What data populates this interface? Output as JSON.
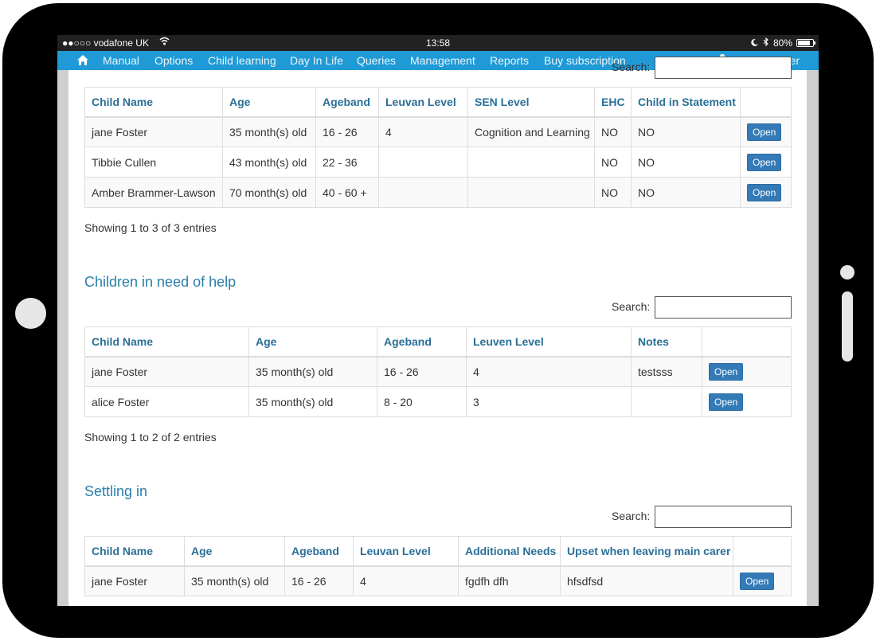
{
  "status_bar": {
    "carrier": "●●○○○ vodafone UK",
    "time": "13:58",
    "battery": "80%",
    "icons": [
      "wifi-icon",
      "moon-icon",
      "bluetooth-icon",
      "battery-icon"
    ]
  },
  "nav": {
    "home_icon": "home-icon",
    "items": [
      "Manual",
      "Options",
      "Child learning",
      "Day In Life",
      "Queries",
      "Management",
      "Reports",
      "Buy subscription"
    ],
    "user_greeting": "Hi, Ian Foster",
    "user_icon": "user-icon"
  },
  "colors": {
    "nav_bg": "#1f9ad6",
    "header_text": "#2a6f97",
    "button_bg": "#337ab7",
    "section_title": "#2a7fa8"
  },
  "table1": {
    "search_label": "Search:",
    "headers": [
      "Child Name",
      "Age",
      "Ageband",
      "Leuvan Level",
      "SEN Level",
      "EHC",
      "Child in Statement",
      ""
    ],
    "rows": [
      [
        "jane Foster",
        "35 month(s) old",
        "16 - 26",
        "4",
        "Cognition and Learning",
        "NO",
        "NO",
        "Open"
      ],
      [
        "Tibbie Cullen",
        "43 month(s) old",
        "22 - 36",
        "",
        "",
        "NO",
        "NO",
        "Open"
      ],
      [
        "Amber Brammer-Lawson",
        "70 month(s) old",
        "40 - 60 +",
        "",
        "",
        "NO",
        "NO",
        "Open"
      ]
    ],
    "info": "Showing 1 to 3 of 3 entries"
  },
  "table2": {
    "title": "Children in need of help",
    "search_label": "Search:",
    "headers": [
      "Child Name",
      "Age",
      "Ageband",
      "Leuven Level",
      "Notes",
      ""
    ],
    "rows": [
      [
        "jane Foster",
        "35 month(s) old",
        "16 - 26",
        "4",
        "testsss",
        "Open"
      ],
      [
        "alice Foster",
        "35 month(s) old",
        "8 - 20",
        "3",
        "",
        "Open"
      ]
    ],
    "info": "Showing 1 to 2 of 2 entries"
  },
  "table3": {
    "title": "Settling in",
    "search_label": "Search:",
    "headers": [
      "Child Name",
      "Age",
      "Ageband",
      "Leuvan Level",
      "Additional Needs",
      "Upset when leaving main carer",
      ""
    ],
    "rows": [
      [
        "jane Foster",
        "35 month(s) old",
        "16 - 26",
        "4",
        "fgdfh dfh",
        "hfsdfsd",
        "Open"
      ]
    ]
  }
}
